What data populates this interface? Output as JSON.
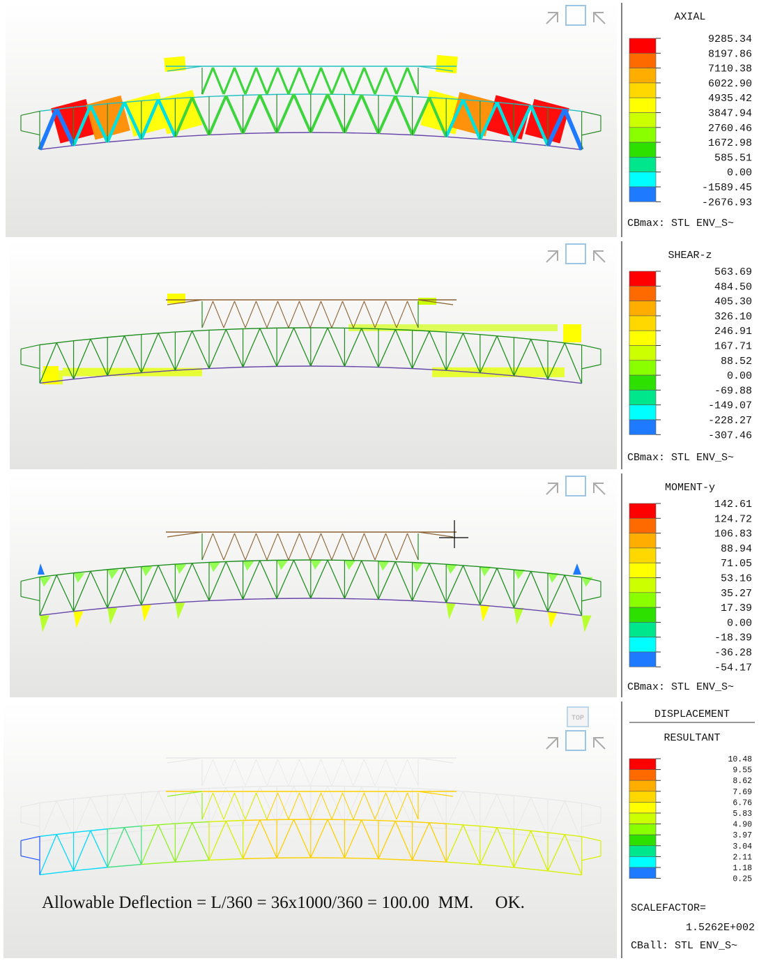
{
  "view_cube": "TOP",
  "panels": [
    {
      "title": "AXIAL",
      "legend": [
        "9285.34",
        "8197.86",
        "7110.38",
        "6022.90",
        "4935.42",
        "3847.94",
        "2760.46",
        "1672.98",
        "585.51",
        "0.00",
        "-1589.45",
        "-2676.93"
      ],
      "footer": "CBmax: STL ENV_S~"
    },
    {
      "title": "SHEAR-z",
      "legend": [
        "563.69",
        "484.50",
        "405.30",
        "326.10",
        "246.91",
        "167.71",
        "88.52",
        "0.00",
        "-69.88",
        "-149.07",
        "-228.27",
        "-307.46"
      ],
      "footer": "CBmax: STL ENV_S~"
    },
    {
      "title": "MOMENT-y",
      "legend": [
        "142.61",
        "124.72",
        "106.83",
        "88.94",
        "71.05",
        "53.16",
        "35.27",
        "17.39",
        "0.00",
        "-18.39",
        "-36.28",
        "-54.17"
      ],
      "footer": "CBmax: STL ENV_S~"
    },
    {
      "title": "DISPLACEMENT",
      "subtitle": "RESULTANT",
      "legend": [
        "10.48",
        "9.55",
        "8.62",
        "7.69",
        "6.76",
        "5.83",
        "4.90",
        "3.97",
        "3.04",
        "2.11",
        "1.18",
        "0.25"
      ],
      "scale_label": "SCALEFACTOR=",
      "scale_value": "1.5262E+002",
      "footer": "CBall: STL ENV_S~",
      "note": "Allowable Deflection = L/360 = 36x1000/360 = 100.00  MM.     OK."
    }
  ]
}
